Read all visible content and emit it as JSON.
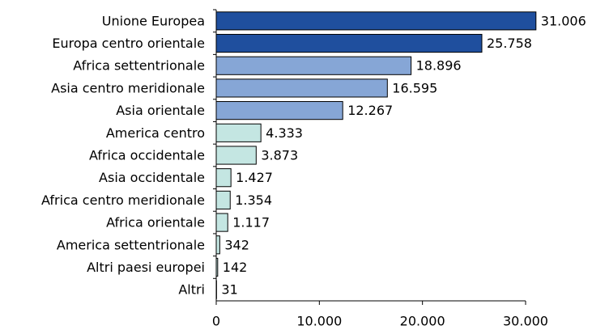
{
  "chart_data": {
    "type": "bar",
    "orientation": "horizontal",
    "categories": [
      "Unione Europea",
      "Europa centro orientale",
      "Africa settentrionale",
      "Asia centro meridionale",
      "Asia orientale",
      "America centro",
      "Africa occidentale",
      "Asia occidentale",
      "Africa centro meridionale",
      "Africa orientale",
      "America settentrionale",
      "Altri paesi europei",
      "Altri"
    ],
    "values": [
      31006,
      25758,
      18896,
      16595,
      12267,
      4333,
      3873,
      1427,
      1354,
      1117,
      342,
      142,
      31
    ],
    "value_labels": [
      "31.006",
      "25.758",
      "18.896",
      "16.595",
      "12.267",
      "4.333",
      "3.873",
      "1.427",
      "1.354",
      "1.117",
      "342",
      "142",
      "31"
    ],
    "colors": [
      "#1f4f9e",
      "#1f4f9e",
      "#86a6d6",
      "#86a6d6",
      "#86a6d6",
      "#c4e6e2",
      "#c4e6e2",
      "#c4e6e2",
      "#c4e6e2",
      "#c4e6e2",
      "#c4e6e2",
      "#c4e6e2",
      "#c4e6e2"
    ],
    "xlim": [
      0,
      30000
    ],
    "xticks": [
      0,
      {
        "value": 10000,
        "label": "10.000"
      },
      {
        "value": 20000,
        "label": "20.000"
      },
      {
        "value": 30000,
        "label": "30.000"
      }
    ]
  }
}
